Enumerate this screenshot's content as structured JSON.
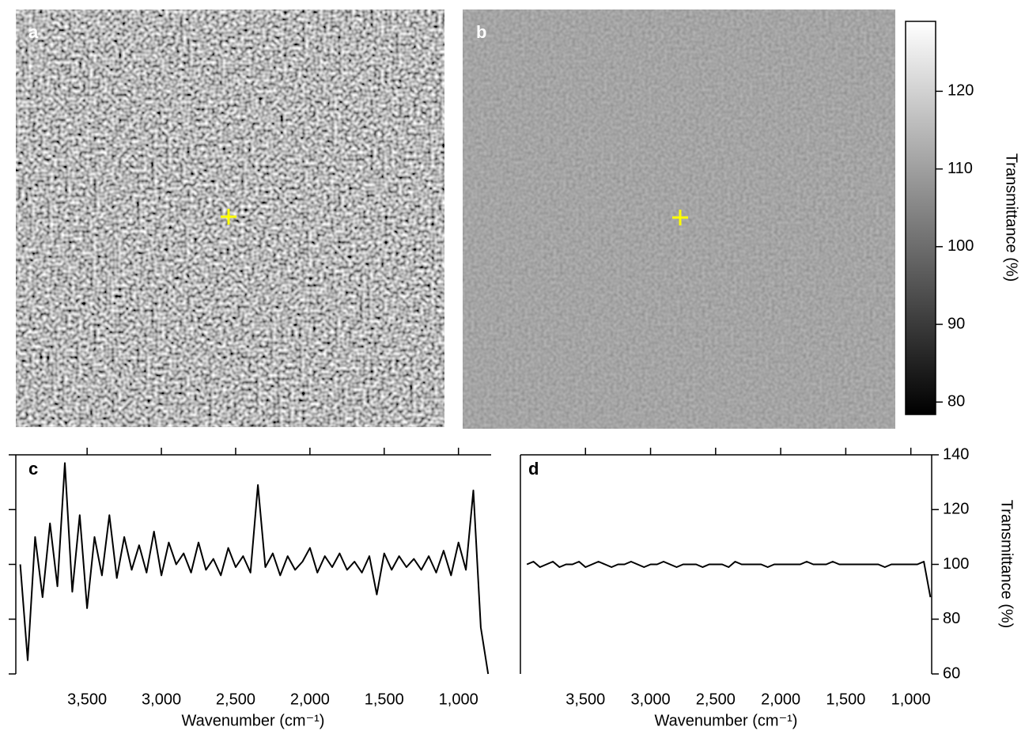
{
  "chart_data": [
    {
      "type": "image",
      "panel_label": "a"
    },
    {
      "type": "image",
      "panel_label": "b",
      "colorbar": {
        "label": "Transmittance (%)",
        "lim": [
          78.4,
          129
        ],
        "ticks": [
          80,
          90,
          100,
          110,
          120
        ]
      }
    },
    {
      "type": "line",
      "panel_label": "c",
      "xlabel": "Wavenumber (cm⁻¹)",
      "color": "#000000",
      "xlim": [
        3980,
        780
      ],
      "ylim": [
        60,
        140
      ],
      "xticks": [
        {
          "value": 3500,
          "label": "3,500"
        },
        {
          "value": 3000,
          "label": "3,000"
        },
        {
          "value": 2500,
          "label": "2,500"
        },
        {
          "value": 2000,
          "label": "2,000"
        },
        {
          "value": 1500,
          "label": "1,500"
        },
        {
          "value": 1000,
          "label": "1,000"
        }
      ],
      "yticks": [
        60,
        80,
        100,
        120,
        140
      ],
      "x": [
        3950,
        3900,
        3850,
        3800,
        3750,
        3700,
        3650,
        3600,
        3550,
        3500,
        3450,
        3400,
        3350,
        3300,
        3250,
        3200,
        3150,
        3100,
        3050,
        3000,
        2950,
        2900,
        2850,
        2800,
        2750,
        2700,
        2650,
        2600,
        2550,
        2500,
        2450,
        2400,
        2350,
        2300,
        2250,
        2200,
        2150,
        2100,
        2050,
        2000,
        1950,
        1900,
        1850,
        1800,
        1750,
        1700,
        1650,
        1600,
        1550,
        1500,
        1450,
        1400,
        1350,
        1300,
        1250,
        1200,
        1150,
        1100,
        1050,
        1000,
        950,
        900,
        850,
        800
      ],
      "values": [
        100,
        65,
        110,
        88,
        115,
        92,
        137,
        90,
        118,
        84,
        110,
        96,
        118,
        95,
        110,
        98,
        107,
        97,
        112,
        96,
        108,
        100,
        104,
        97,
        108,
        98,
        102,
        96,
        106,
        99,
        103,
        97,
        129,
        99,
        104,
        96,
        103,
        98,
        101,
        106,
        97,
        103,
        99,
        104,
        98,
        101,
        97,
        103,
        89,
        104,
        98,
        103,
        99,
        102,
        98,
        103,
        97,
        105,
        96,
        108,
        98,
        127,
        77,
        60
      ]
    },
    {
      "type": "line",
      "panel_label": "d",
      "xlabel": "Wavenumber (cm⁻¹)",
      "ylabel": "Transmittance (%)",
      "color": "#000000",
      "xlim": [
        4000,
        840
      ],
      "ylim": [
        60,
        140
      ],
      "xticks": [
        {
          "value": 3500,
          "label": "3,500"
        },
        {
          "value": 3000,
          "label": "3,000"
        },
        {
          "value": 2500,
          "label": "2,500"
        },
        {
          "value": 2000,
          "label": "2,000"
        },
        {
          "value": 1500,
          "label": "1,500"
        },
        {
          "value": 1000,
          "label": "1,000"
        }
      ],
      "yticks": [
        60,
        80,
        100,
        120,
        140
      ],
      "x": [
        3950,
        3900,
        3850,
        3800,
        3750,
        3700,
        3650,
        3600,
        3550,
        3500,
        3450,
        3400,
        3350,
        3300,
        3250,
        3200,
        3150,
        3100,
        3050,
        3000,
        2950,
        2900,
        2850,
        2800,
        2750,
        2700,
        2650,
        2600,
        2550,
        2500,
        2450,
        2400,
        2350,
        2300,
        2250,
        2200,
        2150,
        2100,
        2050,
        2000,
        1950,
        1900,
        1850,
        1800,
        1750,
        1700,
        1650,
        1600,
        1550,
        1500,
        1450,
        1400,
        1350,
        1300,
        1250,
        1200,
        1150,
        1100,
        1050,
        1000,
        950,
        900,
        850
      ],
      "values": [
        100,
        101,
        99,
        100,
        101,
        99,
        100,
        100,
        101,
        99,
        100,
        101,
        100,
        99,
        100,
        100,
        101,
        100,
        99,
        100,
        100,
        101,
        100,
        99,
        100,
        100,
        100,
        99,
        100,
        100,
        100,
        99,
        101,
        100,
        100,
        100,
        100,
        99,
        100,
        100,
        100,
        100,
        100,
        101,
        100,
        100,
        100,
        101,
        100,
        100,
        100,
        100,
        100,
        100,
        100,
        99,
        100,
        100,
        100,
        100,
        100,
        101,
        88
      ]
    }
  ]
}
